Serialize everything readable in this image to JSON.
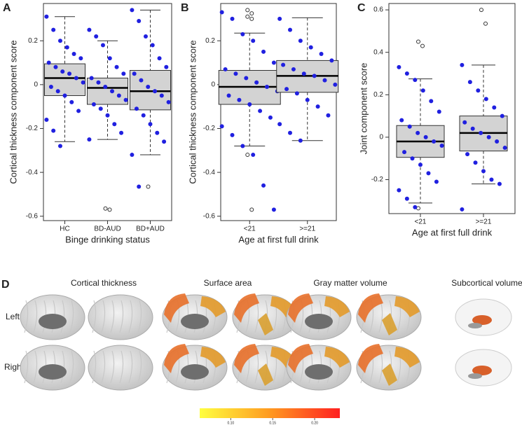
{
  "chart_data": [
    {
      "type": "box",
      "panel": "A",
      "y_label": "Cortical thickness component score",
      "x_label": "Binge drinking status",
      "categories": [
        "HC",
        "BD-AUD",
        "BD+AUD"
      ],
      "ylim": [
        -0.62,
        0.37
      ],
      "yticks": [
        -0.6,
        -0.4,
        -0.2,
        0,
        0.2
      ],
      "color": "#2020e0",
      "boxes": [
        {
          "min": -0.26,
          "q1": -0.05,
          "median": 0.03,
          "q3": 0.095,
          "max": 0.31,
          "outliers": [],
          "points": [
            0.31,
            0.25,
            0.2,
            0.17,
            0.14,
            0.12,
            0.1,
            0.08,
            0.06,
            0.05,
            0.03,
            0.01,
            -0.01,
            -0.03,
            -0.05,
            -0.08,
            -0.12,
            -0.16,
            -0.21,
            -0.28
          ]
        },
        {
          "min": -0.25,
          "q1": -0.09,
          "median": -0.015,
          "q3": 0.03,
          "max": 0.2,
          "outliers": [
            -0.565,
            -0.57
          ],
          "points": [
            0.25,
            0.22,
            0.18,
            0.12,
            0.08,
            0.05,
            0.03,
            0.01,
            -0.01,
            -0.03,
            -0.05,
            -0.07,
            -0.09,
            -0.11,
            -0.14,
            -0.18,
            -0.22,
            -0.25
          ]
        },
        {
          "min": -0.32,
          "q1": -0.115,
          "median": -0.03,
          "q3": 0.065,
          "max": 0.34,
          "outliers": [
            -0.465
          ],
          "points": [
            0.34,
            0.29,
            0.22,
            0.18,
            0.12,
            0.08,
            0.05,
            0.02,
            -0.01,
            -0.03,
            -0.05,
            -0.08,
            -0.11,
            -0.14,
            -0.18,
            -0.22,
            -0.26,
            -0.32,
            -0.465
          ]
        }
      ]
    },
    {
      "type": "box",
      "panel": "B",
      "y_label": "Cortical thickness component score",
      "x_label": "Age at first full drink",
      "categories": [
        "<21",
        ">=21"
      ],
      "ylim": [
        -0.62,
        0.37
      ],
      "yticks": [
        -0.6,
        -0.4,
        -0.2,
        0,
        0.2
      ],
      "color": "#2020e0",
      "boxes": [
        {
          "min": -0.28,
          "q1": -0.09,
          "median": -0.01,
          "q3": 0.065,
          "max": 0.235,
          "outliers": [
            0.34,
            0.325,
            0.31,
            0.3,
            -0.32,
            -0.57
          ],
          "points": [
            0.33,
            0.3,
            0.23,
            0.2,
            0.15,
            0.1,
            0.07,
            0.05,
            0.03,
            0.01,
            -0.01,
            -0.03,
            -0.05,
            -0.07,
            -0.09,
            -0.12,
            -0.15,
            -0.19,
            -0.23,
            -0.28,
            -0.32,
            -0.46,
            -0.57
          ]
        },
        {
          "min": -0.255,
          "q1": -0.035,
          "median": 0.04,
          "q3": 0.11,
          "max": 0.305,
          "outliers": [],
          "points": [
            0.3,
            0.25,
            0.2,
            0.17,
            0.14,
            0.11,
            0.09,
            0.07,
            0.05,
            0.04,
            0.02,
            0,
            -0.02,
            -0.04,
            -0.07,
            -0.1,
            -0.14,
            -0.18,
            -0.22,
            -0.255
          ]
        }
      ]
    },
    {
      "type": "box",
      "panel": "C",
      "y_label": "Joint component score",
      "x_label": "Age at first full drink",
      "categories": [
        "<21",
        ">=21"
      ],
      "ylim": [
        -0.36,
        0.63
      ],
      "yticks": [
        -0.2,
        0,
        0.2,
        0.4,
        0.6
      ],
      "color": "#2020e0",
      "boxes": [
        {
          "min": -0.31,
          "q1": -0.095,
          "median": -0.02,
          "q3": 0.055,
          "max": 0.275,
          "outliers": [
            0.45,
            0.43,
            -0.335
          ],
          "points": [
            0.33,
            0.3,
            0.27,
            0.22,
            0.17,
            0.12,
            0.08,
            0.05,
            0.02,
            0,
            -0.02,
            -0.04,
            -0.07,
            -0.1,
            -0.13,
            -0.17,
            -0.21,
            -0.25,
            -0.29,
            -0.33
          ]
        },
        {
          "min": -0.22,
          "q1": -0.065,
          "median": 0.02,
          "q3": 0.1,
          "max": 0.34,
          "outliers": [
            0.6,
            0.535
          ],
          "points": [
            0.34,
            0.26,
            0.22,
            0.18,
            0.14,
            0.1,
            0.07,
            0.04,
            0.02,
            0,
            -0.02,
            -0.05,
            -0.08,
            -0.12,
            -0.16,
            -0.2,
            -0.22,
            -0.34
          ]
        }
      ]
    }
  ],
  "panel_d": {
    "label": "D",
    "columns": [
      "Cortical thickness",
      "Surface area",
      "Gray matter volume",
      "Subcortical volume"
    ],
    "rows": [
      "Left",
      "Right"
    ],
    "colorbar": {
      "lim": [
        0.063,
        0.23
      ],
      "ticks": [
        {
          "value": 0.1,
          "label": "0.10"
        },
        {
          "value": 0.15,
          "label": "0.15"
        },
        {
          "value": 0.2,
          "label": "0.20"
        }
      ]
    }
  }
}
